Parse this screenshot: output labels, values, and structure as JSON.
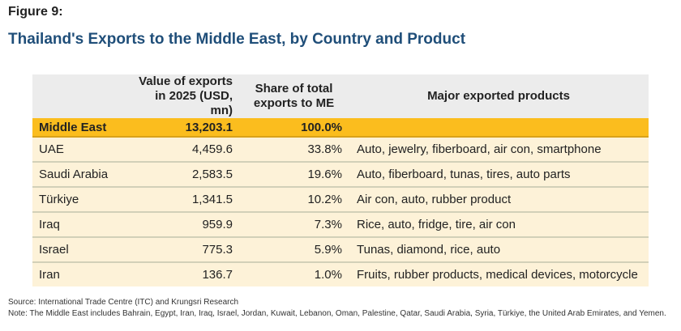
{
  "figure_label": "Figure 9:",
  "title": "Thailand's Exports to the Middle East, by Country and Product",
  "table": {
    "headers": [
      "",
      "Value of exports in 2025 (USD, mn)",
      "Share of total exports to ME",
      "Major exported products"
    ],
    "rows": [
      [
        "Middle East",
        "13,203.1",
        "100.0%",
        ""
      ],
      [
        "UAE",
        "4,459.6",
        "33.8%",
        "Auto, jewelry, fiberboard, air con, smartphone"
      ],
      [
        "Saudi Arabia",
        "2,583.5",
        "19.6%",
        "Auto, fiberboard, tunas, tires, auto parts"
      ],
      [
        "Türkiye",
        "1,341.5",
        "10.2%",
        "Air con, auto, rubber product"
      ],
      [
        "Iraq",
        "959.9",
        "7.3%",
        "Rice, auto, fridge, tire, air con"
      ],
      [
        "Israel",
        "775.3",
        "5.9%",
        "Tunas, diamond, rice, auto"
      ],
      [
        "Iran",
        "136.7",
        "1.0%",
        "Fruits, rubber products, medical devices, motorcycle"
      ]
    ]
  },
  "source": "Source: International Trade Centre (ITC) and Krungsri Research",
  "note": "Note: The Middle East includes Bahrain, Egypt, Iran, Iraq, Israel, Jordan, Kuwait, Lebanon, Oman, Palestine, Qatar, Saudi Arabia, Syria, Türkiye, the United Arab Emirates, and Yemen.",
  "colors": {
    "title": "#1f4e79",
    "highlight_row": "#fbbd1e",
    "row_bg": "#fdf2d8",
    "header_bg": "#ececec"
  }
}
